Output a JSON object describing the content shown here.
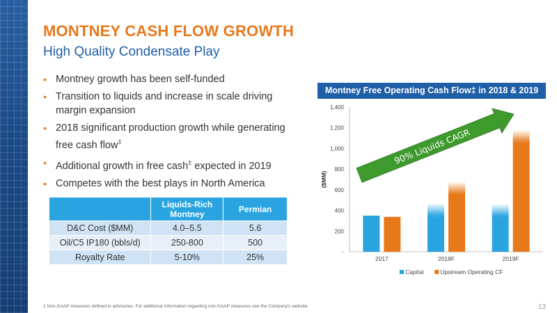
{
  "slide": {
    "title": "MONTNEY CASH FLOW GROWTH",
    "subtitle": "High Quality Condensate Play",
    "bullets": [
      {
        "text": "Montney growth has been self-funded",
        "sup": ""
      },
      {
        "text": "Transition to liquids and increase in scale driving margin expansion",
        "sup": ""
      },
      {
        "text": "2018 significant production growth while generating free cash flow",
        "sup": "‡"
      },
      {
        "text": "Additional growth in free cash",
        "sup": "‡",
        "tail": " expected in 2019"
      },
      {
        "text": "Competes with the best plays in North America",
        "sup": ""
      }
    ],
    "footnote": "‡ Non-GAAP measures defined in advisories. For additional information regarding non-GAAP measures see the Company's website.",
    "page_number": "13"
  },
  "table": {
    "headers": [
      "",
      "Liquids-Rich Montney",
      "Permian"
    ],
    "rows": [
      [
        "D&C Cost ($MM)",
        "4.0–5.5",
        "5.6"
      ],
      [
        "Oil/C5 IP180 (bbls/d)",
        "250-800",
        "500"
      ],
      [
        "Royalty Rate",
        "5-10%",
        "25%"
      ]
    ]
  },
  "colors": {
    "accent_orange": "#e8791b",
    "brand_blue": "#1f5fa8",
    "capital_blue": "#2aa4e0",
    "cf_orange": "#e8791b",
    "arrow_green": "#3f9a2e"
  },
  "chart_data": {
    "type": "bar",
    "title": "Montney Free Operating Cash Flow‡ in 2018 & 2019",
    "categories": [
      "2017",
      "2018F",
      "2019F"
    ],
    "series": [
      {
        "name": "Capital",
        "values": [
          350,
          470,
          465
        ]
      },
      {
        "name": "Upstream Operating CF",
        "values": [
          338,
          680,
          1180
        ]
      }
    ],
    "ylabel": "($MM)",
    "ylim": [
      0,
      1400
    ],
    "yticks": [
      0,
      200,
      400,
      600,
      800,
      1000,
      1200,
      1400
    ],
    "ytick_labels": [
      "-",
      "200",
      "400",
      "600",
      "800",
      "1,000",
      "1,200",
      "1,400"
    ],
    "annotation": "90% Liquids CAGR",
    "legend": "bottom",
    "grid": false
  }
}
